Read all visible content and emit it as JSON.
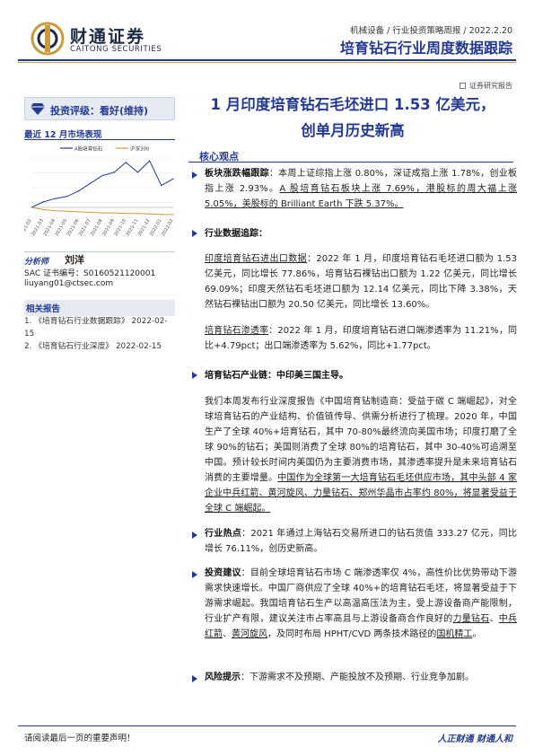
{
  "header": {
    "logo_cn": "财通证券",
    "logo_en": "CAITONG SECURITIES",
    "meta": "机械设备 / 行业投资策略周报 / 2022.2.20",
    "title": "培育钻石行业周度数据跟踪",
    "tag": "证券研究报告"
  },
  "sidebar": {
    "rating": "投资评级：看好(维持)",
    "market_title": "最近 12 月市场表现",
    "analyst_label": "分析师",
    "analyst_name": "刘洋",
    "sac": "SAC 证书编号：S0160521120001",
    "email": "liuyang01@ctsec.com",
    "related_title": "相关报告",
    "related": [
      "1. 《培育钻石行业数据跟踪》 2022-02-15",
      "2. 《培育钻石行业深度》 2022-02-15"
    ]
  },
  "chart_data": {
    "type": "line",
    "x": [
      "2021-02",
      "2021-03",
      "2021-04",
      "2021-05",
      "2021-06",
      "2021-07",
      "2021-08",
      "2021-09",
      "2021-10",
      "2021-11",
      "2021-12",
      "2022-01",
      "2022-02"
    ],
    "series": [
      {
        "name": "A股培育钻石",
        "values": [
          0,
          10,
          16,
          20,
          30,
          44,
          58,
          64,
          82,
          64,
          85,
          40,
          52
        ]
      },
      {
        "name": "沪深300",
        "values": [
          0,
          -4,
          -6,
          -7,
          -8,
          -9,
          -10,
          -10,
          -11,
          -11,
          -12,
          -13,
          -13
        ]
      }
    ],
    "colors": [
      "#233a8f",
      "#c89b3c"
    ],
    "legend": "top"
  },
  "main": {
    "title_line1": "1 月印度培育钻石毛坯进口 1.53 亿美元，",
    "title_line2": "创单月历史新高",
    "core_label": "核心观点",
    "p1_head": "板块涨跌幅跟踪",
    "p1_a": "：本周上证综指上涨 0.80%，深证成指上涨 1.78%，创业板指上涨 2.93%。",
    "p1_b": "A 股培育钻石板块上涨 7.69%，港股标的周大福上涨 5.05%，美股标的 Brilliant Earth 下跌 5.37%。",
    "p2_head": "行业数据追踪：",
    "p3_head": "印度培育钻石进出口数据",
    "p3_body": "：2022 年 1 月，印度培育钻石毛坯进口额为 1.53 亿美元，同比增长 77.86%，培育钻石裸钻出口额为 1.22 亿美元，同比增长 69.09%；印度天然钻石毛坯进口额为 12.14 亿美元，同比下降 3.38%，天然钻石裸钻出口额为 20.50 亿美元，同比增长 13.60%。",
    "p4_head": "培育钻石渗透率",
    "p4_body": "：2022 年 1 月，印度培育钻石进口端渗透率为 11.21%，同比+4.79pct；出口端渗透率为 5.62%，同比+1.77pct。",
    "p5_head": "培育钻石产业链：中印美三国主导。",
    "p6_a": "我们本周发布行业深度报告《中国培育钻制造商：受益于碳 C 端崛起》，对全球培育钻石的产业结构、价值链传导、供需分析进行了梳理。2020 年，中国生产了全球 40%+培育钻石，其中 70-80%最终流向美国市场；印度打磨了全球 90%的钻石；美国则消费了全球 80%的培育钻石，其中 30-40%可追溯至中国。预计较长时间内美国仍为主要消费市场，其渗透率提升是未来培育钻石消费的主要增量。",
    "p6_b": "中国作为全球第一大培育钻石毛坯供应市场，其中头部 4 家企业中兵红箭、黄河旋风、力量钻石、郑州华晶市占率约 80%，将显著受益于全球 C 端崛起。",
    "p7_head": "行业热点",
    "p7_body": "：2021 年通过上海钻石交易所进口的钻石货值 333.27 亿元，同比增长 76.11%，创历史新高。",
    "p8_head": "投资建议",
    "p8_a": "：目前全球培育钻石市场 C 端渗透率仅 4%，高性价比优势带动下游需求快速增长。中国厂商供应了全球 40%+的培育钻石毛坯，将显著受益于下游需求崛起。我国培育钻石生产以高温高压法为主，受上游设备商产能限制，行业扩产有限，建议关注市占率高且与上游设备商合作良好的",
    "p8_c1": "力量钻石",
    "p8_sep": "、",
    "p8_c2": "中兵红箭",
    "p8_c3": "黄河旋风",
    "p8_b": "，及同时布局 HPHT/CVD 两条技术路径的",
    "p8_c4": "国机精工",
    "p8_end": "。",
    "p9_head": "风险提示",
    "p9_body": "：下游需求不及预期、产能投放不及预期、行业竞争加剧。"
  },
  "footer": {
    "left": "请阅读最后一页的重要声明！",
    "right": "人正财通 财通人和"
  }
}
